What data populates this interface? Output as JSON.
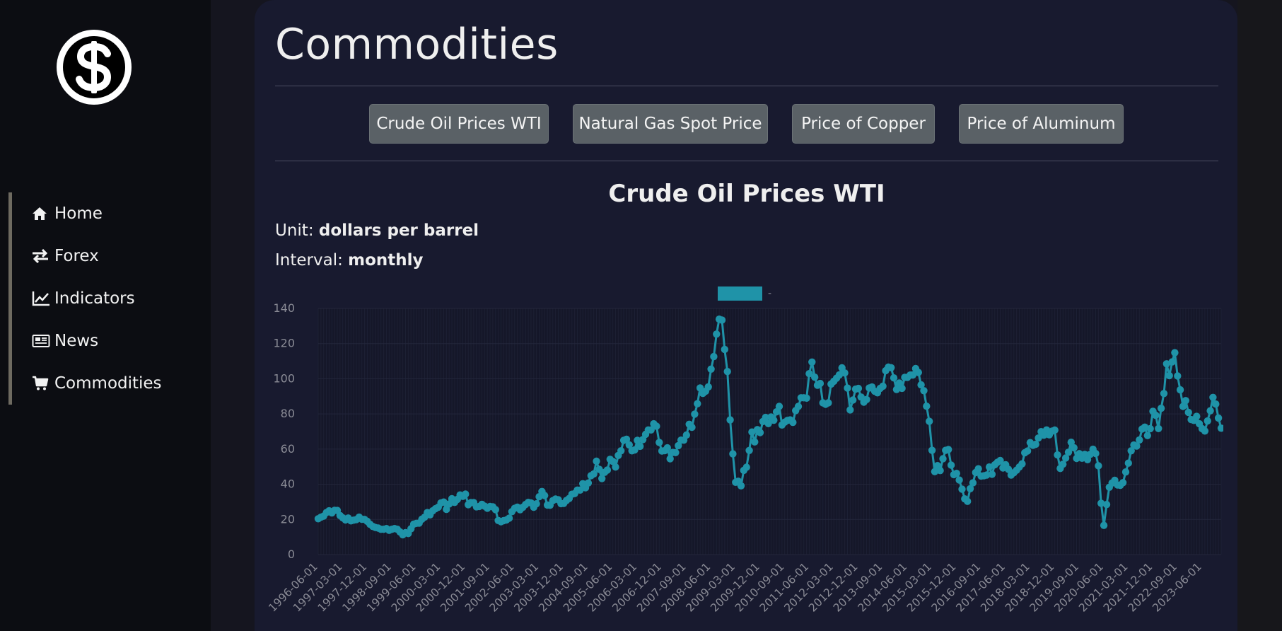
{
  "sidebar": {
    "items": [
      {
        "label": "Home",
        "icon": "home-icon"
      },
      {
        "label": "Forex",
        "icon": "exchange-icon"
      },
      {
        "label": "Indicators",
        "icon": "line-chart-icon"
      },
      {
        "label": "News",
        "icon": "newspaper-icon"
      },
      {
        "label": "Commodities",
        "icon": "cart-icon"
      }
    ]
  },
  "main": {
    "title": "Commodities",
    "buttons": [
      "Crude Oil Prices WTI",
      "Natural Gas Spot Price",
      "Price of Copper",
      "Price of Aluminum"
    ],
    "chart_title": "Crude Oil Prices WTI",
    "unit_label": "Unit:",
    "unit_value": "dollars per barrel",
    "interval_label": "Interval:",
    "interval_value": "monthly"
  },
  "colors": {
    "accent": "#1f93a8",
    "background": "#181a2f",
    "sidebar": "#0c0d12",
    "button": "#5a6166"
  },
  "chart_data": {
    "type": "line",
    "legend": {
      "label": "-",
      "position": "top-center"
    },
    "ylim": [
      0,
      140
    ],
    "yticks": [
      0,
      20,
      40,
      60,
      80,
      100,
      120,
      140
    ],
    "xticks": [
      "1996-06-01",
      "1997-03-01",
      "1997-12-01",
      "1998-09-01",
      "1999-06-01",
      "2000-03-01",
      "2000-12-01",
      "2001-09-01",
      "2002-06-01",
      "2003-03-01",
      "2003-12-01",
      "2004-09-01",
      "2005-06-01",
      "2006-03-01",
      "2006-12-01",
      "2007-09-01",
      "2008-06-01",
      "2009-03-01",
      "2009-12-01",
      "2010-09-01",
      "2011-06-01",
      "2012-03-01",
      "2012-12-01",
      "2013-09-01",
      "2014-06-01",
      "2015-03-01",
      "2015-12-01",
      "2016-09-01",
      "2017-06-01",
      "2018-03-01",
      "2018-12-01",
      "2019-09-01",
      "2020-06-01",
      "2021-03-01",
      "2021-12-01",
      "2022-09-01",
      "2023-06-01"
    ],
    "grid": true,
    "series": [
      {
        "start": "1996-06-01",
        "frequency": "monthly",
        "values": [
          20.4,
          21.3,
          21.9,
          23.9,
          24.9,
          23.7,
          25.2,
          25.1,
          22.2,
          20.9,
          19.7,
          20.8,
          19.2,
          19.6,
          19.9,
          21.3,
          20.1,
          20.0,
          18.9,
          17.2,
          16.0,
          15.4,
          15.1,
          14.4,
          14.4,
          14.8,
          13.8,
          14.4,
          14.8,
          14.4,
          12.9,
          11.3,
          12.5,
          12.0,
          14.7,
          17.3,
          17.8,
          17.9,
          20.1,
          21.3,
          23.9,
          22.6,
          24.9,
          26.1,
          27.0,
          29.4,
          29.9,
          25.7,
          28.8,
          31.8,
          29.7,
          31.4,
          33.9,
          33.1,
          34.4,
          28.4,
          29.6,
          29.6,
          27.2,
          27.4,
          28.6,
          27.6,
          26.4,
          27.4,
          27.2,
          25.6,
          19.4,
          18.7,
          19.3,
          19.7,
          20.7,
          24.4,
          26.3,
          27.0,
          25.5,
          26.9,
          28.5,
          29.7,
          29.4,
          26.9,
          28.9,
          32.9,
          35.9,
          33.6,
          28.2,
          28.1,
          30.7,
          31.6,
          31.2,
          29.0,
          29.1,
          30.8,
          31.9,
          34.3,
          34.7,
          36.7,
          36.7,
          40.3,
          38.0,
          40.7,
          44.9,
          45.9,
          53.1,
          48.5,
          43.3,
          46.8,
          48.1,
          54.2,
          53.0,
          49.8,
          56.4,
          59.0,
          65.0,
          65.6,
          62.4,
          59.0,
          59.5,
          65.0,
          61.6,
          65.4,
          68.4,
          70.9,
          70.9,
          74.4,
          73.0,
          63.8,
          58.9,
          59.1,
          60.7,
          54.5,
          58.1,
          58.0,
          62.0,
          65.1,
          65.1,
          68.0,
          74.1,
          72.4,
          79.9,
          85.8,
          94.8,
          91.7,
          92.9,
          95.4,
          105.5,
          112.6,
          125.4,
          133.9,
          133.4,
          116.7,
          104.1,
          76.6,
          57.3,
          41.1,
          41.7,
          39.1,
          47.9,
          49.7,
          59.2,
          69.7,
          64.1,
          71.1,
          69.4,
          75.7,
          78.0,
          74.5,
          78.3,
          76.4,
          81.2,
          84.3,
          73.7,
          75.3,
          76.3,
          76.6,
          75.2,
          81.9,
          84.3,
          89.2,
          89.2,
          89.0,
          102.9,
          109.5,
          100.9,
          96.3,
          97.3,
          86.3,
          85.5,
          86.3,
          97.0,
          98.6,
          100.3,
          102.2,
          106.2,
          103.3,
          94.7,
          82.3,
          87.9,
          94.1,
          94.5,
          89.6,
          86.7,
          88.2,
          94.8,
          95.3,
          92.9,
          92.0,
          94.5,
          95.8,
          104.6,
          106.6,
          106.3,
          100.5,
          93.9,
          97.6,
          94.6,
          100.8,
          100.8,
          102.1,
          102.2,
          105.8,
          103.6,
          96.5,
          93.2,
          84.4,
          75.8,
          59.3,
          47.2,
          50.6,
          47.8,
          54.5,
          59.3,
          59.8,
          50.9,
          45.5,
          46.2,
          42.4,
          37.2,
          31.7,
          30.3,
          37.5,
          40.8,
          46.7,
          48.8,
          44.7,
          44.8,
          45.2,
          49.8,
          45.7,
          51.1,
          52.5,
          53.5,
          49.3,
          51.1,
          48.5,
          45.2,
          46.6,
          48.0,
          49.8,
          51.6,
          57.9,
          58.9,
          63.7,
          62.2,
          62.7,
          66.3,
          69.9,
          67.9,
          70.9,
          68.1,
          70.2,
          70.8,
          56.7,
          49.0,
          51.4,
          54.9,
          58.2,
          63.9,
          60.8,
          54.7,
          57.4,
          54.8,
          57.0,
          54.0,
          57.0,
          59.9,
          57.5,
          50.5,
          29.2,
          16.6,
          28.5,
          38.3,
          40.7,
          42.3,
          39.6,
          39.4,
          40.9,
          47.0,
          52.0,
          59.0,
          62.3,
          61.7,
          65.2,
          71.4,
          72.5,
          67.7,
          71.6,
          81.5,
          79.2,
          71.7,
          83.2,
          91.6,
          108.5,
          101.8,
          109.6,
          114.8,
          101.6,
          93.7,
          84.3,
          87.6,
          80.9,
          76.8,
          76.3,
          78.6,
          74.4,
          71.6,
          70.3,
          76.0,
          81.8,
          89.4,
          85.6,
          77.7,
          71.9
        ]
      }
    ]
  }
}
